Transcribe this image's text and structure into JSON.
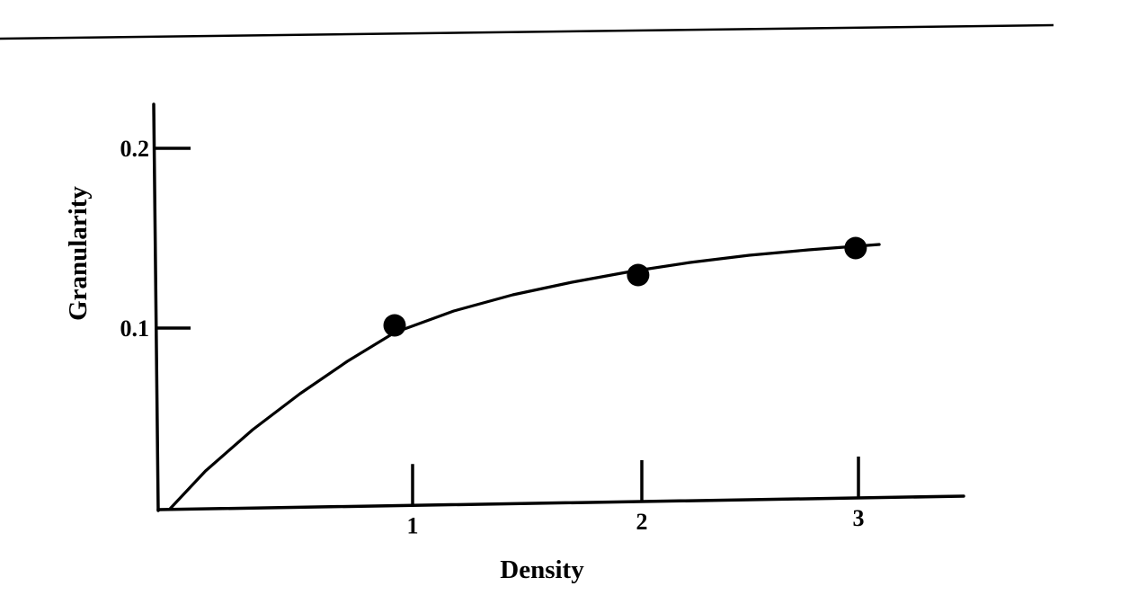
{
  "chart_data": {
    "type": "scatter",
    "title": "",
    "xlabel": "Density",
    "ylabel": "Granularity",
    "xlim": [
      0,
      3.4
    ],
    "ylim": [
      0,
      0.22
    ],
    "x_ticks": [
      {
        "value": 1,
        "label": "1"
      },
      {
        "value": 2,
        "label": "2"
      },
      {
        "value": 3,
        "label": "3"
      }
    ],
    "y_ticks": [
      {
        "value": 0.1,
        "label": "0.1"
      },
      {
        "value": 0.2,
        "label": "0.2"
      }
    ],
    "series": [
      {
        "kind": "points",
        "x": [
          1,
          2.03,
          2.95
        ],
        "y": [
          0.102,
          0.13,
          0.145
        ]
      },
      {
        "kind": "curve",
        "x": [
          0.05,
          0.2,
          0.4,
          0.6,
          0.8,
          1.0,
          1.25,
          1.5,
          1.75,
          2.0,
          2.25,
          2.5,
          2.75,
          3.05
        ],
        "y": [
          0.0,
          0.021,
          0.044,
          0.064,
          0.082,
          0.098,
          0.11,
          0.119,
          0.126,
          0.132,
          0.137,
          0.141,
          0.144,
          0.147
        ]
      }
    ],
    "grid": false,
    "legend": "none",
    "colors": {
      "ink": "#000000",
      "background": "#ffffff"
    }
  }
}
